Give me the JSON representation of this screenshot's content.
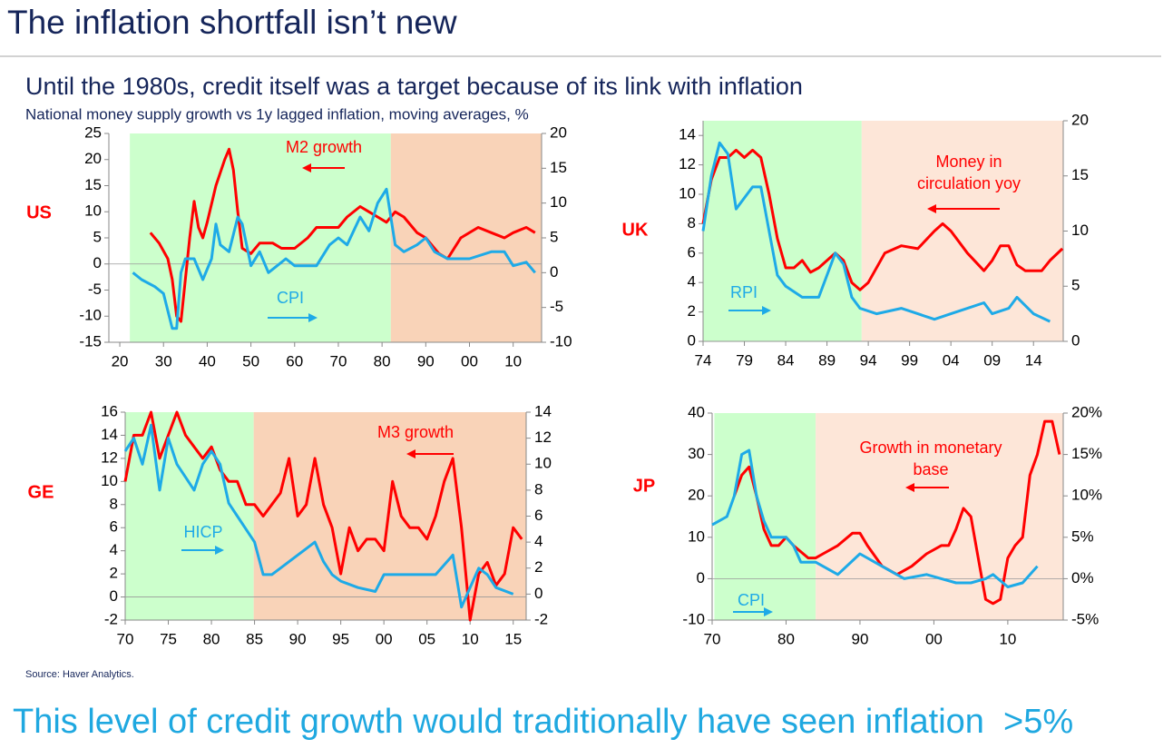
{
  "title": "The inflation shortfall isn’t new",
  "subtitle": "Until the 1980s, credit itself was a target because of its link with inflation",
  "description": "National money supply growth vs 1y lagged inflation, moving averages, %",
  "source": "Source: Haver Analytics.",
  "footer": "This level of credit growth would traditionally have seen inflation  >5%",
  "chart_data": [
    {
      "type": "line",
      "label": "US",
      "xlim": [
        1917.5,
        2016.5
      ],
      "xticks": [
        {
          "value": 1920,
          "label": "20"
        },
        {
          "value": 1930,
          "label": "30"
        },
        {
          "value": 1940,
          "label": "40"
        },
        {
          "value": 1950,
          "label": "50"
        },
        {
          "value": 1960,
          "label": "60"
        },
        {
          "value": 1970,
          "label": "70"
        },
        {
          "value": 1980,
          "label": "80"
        },
        {
          "value": 1990,
          "label": "90"
        },
        {
          "value": 2000,
          "label": "00"
        },
        {
          "value": 2010,
          "label": "10"
        }
      ],
      "ylim": [
        -15,
        25
      ],
      "yticks": [
        -15,
        -10,
        -5,
        0,
        5,
        10,
        15,
        20,
        25
      ],
      "y2lim": [
        -10,
        20
      ],
      "y2ticks": [
        -10,
        -5,
        0,
        5,
        10,
        15,
        20
      ],
      "shading": [
        {
          "x": [
            1922.3,
            1982
          ],
          "color": "#ccffcc"
        },
        {
          "x": [
            1982,
            2016.5
          ],
          "color": "#f9d3b8"
        }
      ],
      "series": [
        {
          "name": "M2 growth",
          "color": "#ff0000",
          "axis": "y",
          "x": [
            1927,
            1929,
            1931,
            1932,
            1933,
            1934,
            1935,
            1936,
            1937,
            1938,
            1939,
            1940,
            1942,
            1944,
            1945,
            1946,
            1947,
            1948,
            1950,
            1952,
            1955,
            1957,
            1960,
            1963,
            1965,
            1967,
            1970,
            1972,
            1975,
            1977,
            1979,
            1981,
            1983,
            1985,
            1988,
            1990,
            1993,
            1995,
            1998,
            2002,
            2005,
            2008,
            2010,
            2013,
            2015
          ],
          "values": [
            6,
            4,
            1,
            -3,
            -10,
            -11,
            -3,
            5,
            12,
            7,
            5,
            8,
            15,
            20,
            22,
            18,
            10,
            3,
            2,
            4,
            4,
            3,
            3,
            5,
            7,
            7,
            7,
            9,
            11,
            10,
            9,
            8,
            10,
            9,
            6,
            5,
            2,
            1,
            5,
            7,
            6,
            5,
            6,
            7,
            6
          ]
        },
        {
          "name": "CPI",
          "color": "#1eaae7",
          "axis": "y2",
          "x": [
            1923,
            1925,
            1928,
            1930,
            1932,
            1933,
            1934,
            1935,
            1937,
            1939,
            1941,
            1942,
            1943,
            1945,
            1947,
            1948,
            1950,
            1952,
            1954,
            1956,
            1958,
            1960,
            1965,
            1968,
            1970,
            1972,
            1975,
            1977,
            1979,
            1981,
            1983,
            1985,
            1988,
            1990,
            1992,
            1995,
            2000,
            2005,
            2008,
            2010,
            2013,
            2015
          ],
          "values": [
            0,
            -1,
            -2,
            -3,
            -8,
            -8,
            0,
            2,
            2,
            -1,
            2,
            7,
            4,
            3,
            8,
            7,
            1,
            3,
            0,
            1,
            2,
            1,
            1,
            4,
            5,
            4,
            8,
            6,
            10,
            12,
            4,
            3,
            4,
            5,
            3,
            2,
            2,
            3,
            3,
            1,
            1.5,
            0
          ]
        }
      ]
    },
    {
      "type": "line",
      "label": "UK",
      "xlim": [
        1974,
        2017.6
      ],
      "xticks": [
        {
          "value": 1974,
          "label": "74"
        },
        {
          "value": 1979,
          "label": "79"
        },
        {
          "value": 1984,
          "label": "84"
        },
        {
          "value": 1989,
          "label": "89"
        },
        {
          "value": 1994,
          "label": "94"
        },
        {
          "value": 1999,
          "label": "99"
        },
        {
          "value": 2004,
          "label": "04"
        },
        {
          "value": 2009,
          "label": "09"
        },
        {
          "value": 2014,
          "label": "14"
        }
      ],
      "ylim": [
        0,
        15
      ],
      "yticks": [
        0,
        2,
        4,
        6,
        8,
        10,
        12,
        14
      ],
      "y2lim": [
        0,
        20
      ],
      "y2ticks": [
        0,
        5,
        10,
        15,
        20
      ],
      "shading": [
        {
          "x": [
            1974,
            1993.2
          ],
          "color": "#ccffcc"
        },
        {
          "x": [
            1993.2,
            2017.6
          ],
          "color": "#fde6d8"
        }
      ],
      "series": [
        {
          "name": "Money in circulation yoy",
          "color": "#ff0000",
          "axis": "y",
          "x": [
            1974,
            1975,
            1976,
            1977,
            1978,
            1979,
            1980,
            1981,
            1982,
            1983,
            1984,
            1985,
            1986,
            1987,
            1988,
            1990,
            1991,
            1992,
            1993,
            1994,
            1996,
            1998,
            2000,
            2002,
            2003,
            2004,
            2006,
            2008,
            2009,
            2010,
            2011,
            2012,
            2013,
            2015,
            2016,
            2017.5
          ],
          "values": [
            8,
            11,
            12.5,
            12.5,
            13,
            12.5,
            13,
            12.5,
            10,
            7,
            5,
            5,
            5.5,
            4.7,
            5,
            6,
            5.5,
            4,
            3.5,
            4,
            6,
            6.5,
            6.3,
            7.5,
            8,
            7.5,
            6,
            4.8,
            5.5,
            6.5,
            6.5,
            5.2,
            4.8,
            4.8,
            5.5,
            6.3
          ]
        },
        {
          "name": "RPI",
          "color": "#1eaae7",
          "axis": "y2",
          "x": [
            1974,
            1975,
            1976,
            1977,
            1978,
            1979,
            1980,
            1981,
            1982,
            1983,
            1984,
            1986,
            1988,
            1989,
            1990,
            1991,
            1992,
            1993,
            1995,
            1998,
            2000,
            2002,
            2004,
            2006,
            2008,
            2009,
            2011,
            2012,
            2014,
            2016
          ],
          "values": [
            10,
            15,
            18,
            17,
            12,
            13,
            14,
            14,
            10,
            6,
            5,
            4,
            4,
            6,
            8,
            7,
            4,
            3,
            2.5,
            3,
            2.5,
            2,
            2.5,
            3,
            3.5,
            2.5,
            3,
            4,
            2.5,
            1.8
          ]
        }
      ]
    },
    {
      "type": "line",
      "label": "GE",
      "xlim": [
        1970,
        2016.5
      ],
      "xticks": [
        {
          "value": 1970,
          "label": "70"
        },
        {
          "value": 1975,
          "label": "75"
        },
        {
          "value": 1980,
          "label": "80"
        },
        {
          "value": 1985,
          "label": "85"
        },
        {
          "value": 1990,
          "label": "90"
        },
        {
          "value": 1995,
          "label": "95"
        },
        {
          "value": 2000,
          "label": "00"
        },
        {
          "value": 2005,
          "label": "05"
        },
        {
          "value": 2010,
          "label": "10"
        },
        {
          "value": 2015,
          "label": "15"
        }
      ],
      "ylim": [
        -2,
        16
      ],
      "yticks": [
        -2,
        0,
        2,
        4,
        6,
        8,
        10,
        12,
        14,
        16
      ],
      "y2lim": [
        -2,
        14
      ],
      "y2ticks": [
        -2,
        0,
        2,
        4,
        6,
        8,
        10,
        12,
        14
      ],
      "shading": [
        {
          "x": [
            1970,
            1984.9
          ],
          "color": "#ccffcc"
        },
        {
          "x": [
            1984.9,
            2016.5
          ],
          "color": "#f9d3b8"
        }
      ],
      "series": [
        {
          "name": "M3 growth",
          "color": "#ff0000",
          "axis": "y",
          "x": [
            1970,
            1971,
            1972,
            1973,
            1974,
            1975,
            1976,
            1977,
            1978,
            1979,
            1980,
            1981,
            1982,
            1983,
            1984,
            1985,
            1986,
            1987,
            1988,
            1989,
            1990,
            1991,
            1992,
            1993,
            1994,
            1995,
            1996,
            1997,
            1998,
            1999,
            2000,
            2001,
            2002,
            2003,
            2004,
            2005,
            2006,
            2007,
            2008,
            2009,
            2010,
            2011,
            2012,
            2013,
            2014,
            2015,
            2016
          ],
          "values": [
            10,
            14,
            14,
            16,
            12,
            14,
            16,
            14,
            13,
            12,
            13,
            11,
            10,
            10,
            8,
            8,
            7,
            8,
            9,
            12,
            7,
            8,
            12,
            8,
            6,
            2,
            6,
            4,
            5,
            5,
            4,
            10,
            7,
            6,
            6,
            5,
            7,
            10,
            12,
            6,
            -2,
            2,
            3,
            1,
            2,
            6,
            5
          ]
        },
        {
          "name": "HICP",
          "color": "#1eaae7",
          "axis": "y2",
          "x": [
            1970,
            1971,
            1972,
            1973,
            1974,
            1975,
            1976,
            1977,
            1978,
            1979,
            1980,
            1981,
            1982,
            1983,
            1984,
            1985,
            1986,
            1987,
            1988,
            1990,
            1991,
            1992,
            1993,
            1994,
            1995,
            1997,
            1999,
            2000,
            2002,
            2004,
            2006,
            2008,
            2009,
            2010,
            2011,
            2012,
            2013,
            2015
          ],
          "values": [
            11,
            12,
            10,
            13,
            8,
            12,
            10,
            9,
            8,
            10,
            11,
            10,
            7,
            6,
            5,
            4,
            1.5,
            1.5,
            2,
            3,
            3.5,
            4,
            2.5,
            1.5,
            1,
            0.5,
            0.2,
            1.5,
            1.5,
            1.5,
            1.5,
            3,
            -1,
            0.5,
            2,
            1.5,
            0.5,
            0
          ]
        }
      ]
    },
    {
      "type": "line",
      "label": "JP",
      "xlim": [
        1970,
        2017.5
      ],
      "xticks": [
        {
          "value": 1970,
          "label": "70"
        },
        {
          "value": 1980,
          "label": "80"
        },
        {
          "value": 1990,
          "label": "90"
        },
        {
          "value": 2000,
          "label": "00"
        },
        {
          "value": 2010,
          "label": "10"
        }
      ],
      "ylim": [
        -10,
        40
      ],
      "yticks": [
        -10,
        0,
        10,
        20,
        30,
        40
      ],
      "y2lim": [
        -5,
        20
      ],
      "y2ticks": [
        {
          "value": -5,
          "label": "-5%"
        },
        {
          "value": 0,
          "label": "0%"
        },
        {
          "value": 5,
          "label": "5%"
        },
        {
          "value": 10,
          "label": "10%"
        },
        {
          "value": 15,
          "label": "15%"
        },
        {
          "value": 20,
          "label": "20%"
        }
      ],
      "shading": [
        {
          "x": [
            1970.3,
            1984
          ],
          "color": "#ccffcc"
        },
        {
          "x": [
            1984,
            2017.5
          ],
          "color": "#fde6d8"
        }
      ],
      "series": [
        {
          "name": "Growth in monetary base",
          "color": "#ff0000",
          "axis": "y",
          "x": [
            1973,
            1974,
            1975,
            1976,
            1977,
            1978,
            1979,
            1980,
            1981,
            1983,
            1984,
            1985,
            1987,
            1989,
            1990,
            1991,
            1993,
            1995,
            1997,
            1999,
            2001,
            2002,
            2003,
            2004,
            2005,
            2006,
            2007,
            2008,
            2009,
            2010,
            2011,
            2012,
            2013,
            2014,
            2015,
            2016,
            2017
          ],
          "values": [
            20,
            25,
            27,
            20,
            12,
            8,
            8,
            10,
            8,
            5,
            5,
            6,
            8,
            11,
            11,
            8,
            3,
            1,
            3,
            6,
            8,
            8,
            12,
            17,
            15,
            5,
            -5,
            -6,
            -5,
            5,
            8,
            10,
            25,
            30,
            38,
            38,
            30
          ]
        },
        {
          "name": "CPI",
          "color": "#1eaae7",
          "axis": "y2",
          "x": [
            1970,
            1972,
            1973,
            1974,
            1975,
            1976,
            1977,
            1978,
            1979,
            1980,
            1981,
            1982,
            1984,
            1987,
            1990,
            1992,
            1994,
            1996,
            1999,
            2001,
            2003,
            2005,
            2007,
            2008,
            2010,
            2012,
            2014
          ],
          "values": [
            6.5,
            7.5,
            10,
            15,
            15.5,
            10,
            7,
            5,
            5,
            5,
            4,
            2,
            2,
            0.5,
            3,
            2,
            1,
            0,
            0.5,
            0,
            -0.5,
            -0.5,
            0,
            0.5,
            -1,
            -0.5,
            1.5
          ]
        }
      ]
    }
  ]
}
